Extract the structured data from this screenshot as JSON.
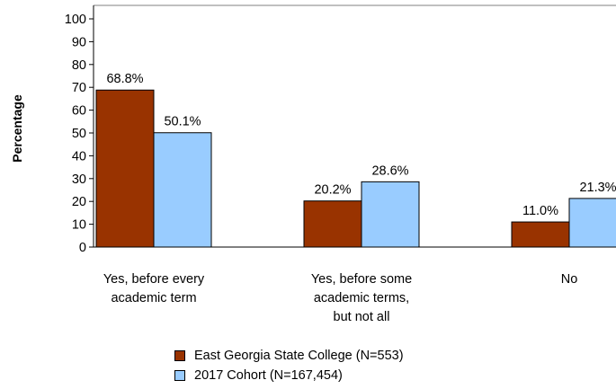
{
  "chart_data": {
    "type": "bar",
    "ylabel": "Percentage",
    "xlabel": "",
    "ylim": [
      0,
      100
    ],
    "yticks": [
      0,
      10,
      20,
      30,
      40,
      50,
      60,
      70,
      80,
      90,
      100
    ],
    "grid": false,
    "legend_position": "bottom",
    "categories": [
      [
        "Yes, before every",
        "academic term"
      ],
      [
        "Yes, before some",
        "academic terms,",
        "but not all"
      ],
      [
        "No"
      ]
    ],
    "series": [
      {
        "name": "East Georgia State College (N=553)",
        "color": "#993300",
        "values": [
          68.8,
          20.2,
          11.0
        ],
        "labels": [
          "68.8%",
          "20.2%",
          "11.0%"
        ]
      },
      {
        "name": "2017 Cohort (N=167,454)",
        "color": "#99ccff",
        "values": [
          50.1,
          28.6,
          21.3
        ],
        "labels": [
          "50.1%",
          "28.6%",
          "21.3%"
        ]
      }
    ]
  }
}
